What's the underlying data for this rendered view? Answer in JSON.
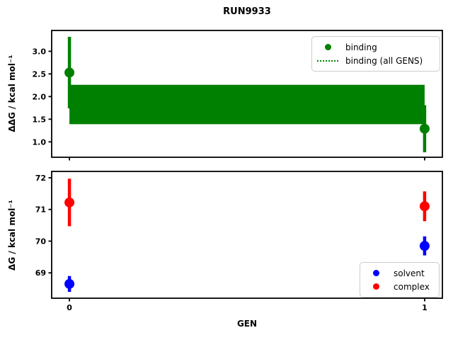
{
  "chart_data": [
    {
      "type": "scatter",
      "subplot": "top",
      "title": "RUN9933",
      "ylabel": "ΔΔG / kcal mol⁻¹",
      "x": [
        0,
        1
      ],
      "xlim": [
        -0.05,
        1.05
      ],
      "ylim": [
        0.66,
        3.46
      ],
      "ytick_labels": [
        "1.0",
        "1.5",
        "2.0",
        "2.5",
        "3.0"
      ],
      "ytick_values": [
        1.0,
        1.5,
        2.0,
        2.5,
        3.0
      ],
      "xtick_labels": [],
      "xtick_values": [
        0,
        1
      ],
      "grid": false,
      "series": [
        {
          "name": "binding",
          "color": "#008000",
          "marker": "circle",
          "values": [
            2.53,
            1.29
          ],
          "errors": [
            0.79,
            0.52
          ]
        }
      ],
      "band": {
        "name": "binding (all GENS)",
        "color": "#008000",
        "lo": 1.39,
        "hi": 2.26,
        "x_from": 0,
        "x_to": 1
      },
      "legend": {
        "position": "upper right",
        "items": [
          {
            "swatch": "dot",
            "color": "#008000",
            "label": "binding"
          },
          {
            "swatch": "dotted-line",
            "color": "#008000",
            "label": "binding (all GENS)"
          }
        ]
      }
    },
    {
      "type": "scatter",
      "subplot": "bottom",
      "xlabel": "GEN",
      "ylabel": "ΔG / kcal mol⁻¹",
      "x": [
        0,
        1
      ],
      "xlim": [
        -0.05,
        1.05
      ],
      "ylim": [
        68.2,
        72.2
      ],
      "ytick_labels": [
        "69",
        "70",
        "71",
        "72"
      ],
      "ytick_values": [
        69,
        70,
        71,
        72
      ],
      "xtick_labels": [
        "0",
        "1"
      ],
      "xtick_values": [
        0,
        1
      ],
      "grid": false,
      "series": [
        {
          "name": "solvent",
          "color": "#0000ff",
          "marker": "circle",
          "values": [
            68.65,
            69.85
          ],
          "errors": [
            0.25,
            0.3
          ]
        },
        {
          "name": "complex",
          "color": "#ff0000",
          "marker": "circle",
          "values": [
            71.22,
            71.1
          ],
          "errors": [
            0.75,
            0.47
          ]
        }
      ],
      "legend": {
        "position": "lower right",
        "items": [
          {
            "swatch": "dot",
            "color": "#0000ff",
            "label": "solvent"
          },
          {
            "swatch": "dot",
            "color": "#ff0000",
            "label": "complex"
          }
        ]
      }
    }
  ],
  "colors": {
    "binding": "#008000",
    "solvent": "#0000ff",
    "complex": "#ff0000",
    "axes": "#000000",
    "legend_border": "#cccccc"
  }
}
